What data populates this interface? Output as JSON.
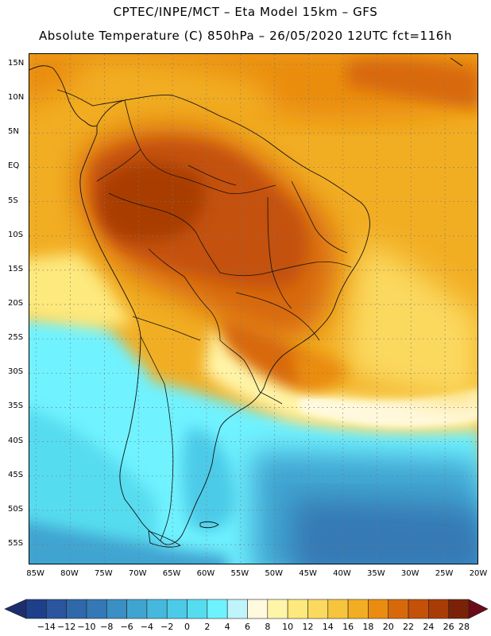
{
  "header": {
    "line1": "CPTEC/INPE/MCT –  Eta Model 15km – GFS",
    "line2": "Absolute Temperature (C) 850hPa – 26/05/2020 12UTC fct=116h"
  },
  "map": {
    "region": "South America",
    "lat_labels": [
      "15N",
      "10N",
      "5N",
      "EQ",
      "5S",
      "10S",
      "15S",
      "20S",
      "25S",
      "30S",
      "35S",
      "40S",
      "45S",
      "50S",
      "55S"
    ],
    "lat_values": [
      15,
      10,
      5,
      0,
      -5,
      -10,
      -15,
      -20,
      -25,
      -30,
      -35,
      -40,
      -45,
      -50,
      -55
    ],
    "lon_labels": [
      "85W",
      "80W",
      "75W",
      "70W",
      "65W",
      "60W",
      "55W",
      "50W",
      "45W",
      "40W",
      "35W",
      "30W",
      "25W",
      "20W"
    ],
    "lon_values": [
      -85,
      -80,
      -75,
      -70,
      -65,
      -60,
      -55,
      -50,
      -45,
      -40,
      -35,
      -30,
      -25,
      -20
    ],
    "lat_range": [
      -58,
      16.5
    ],
    "lon_range": [
      -86,
      -20
    ]
  },
  "colorbar": {
    "labels": [
      "-14",
      "-12",
      "-10",
      "-8",
      "-6",
      "-4",
      "-2",
      "0",
      "2",
      "4",
      "6",
      "8",
      "10",
      "12",
      "14",
      "16",
      "18",
      "20",
      "22",
      "24",
      "26",
      "28"
    ],
    "colors": [
      "#1e3f8a",
      "#2b559d",
      "#2f69aa",
      "#3479b5",
      "#3a8fc4",
      "#40a4d1",
      "#46b8dd",
      "#4ccbe8",
      "#56dcef",
      "#6ff2ff",
      "#bff4fb",
      "#fff9de",
      "#fff5a8",
      "#fde97d",
      "#fbd95f",
      "#f6c53d",
      "#f2ae23",
      "#ea8c10",
      "#d8690a",
      "#c45109",
      "#a93c06",
      "#7a2208"
    ],
    "min_arrow_color": "#1c2e6e",
    "max_arrow_color": "#6b0a18"
  }
}
